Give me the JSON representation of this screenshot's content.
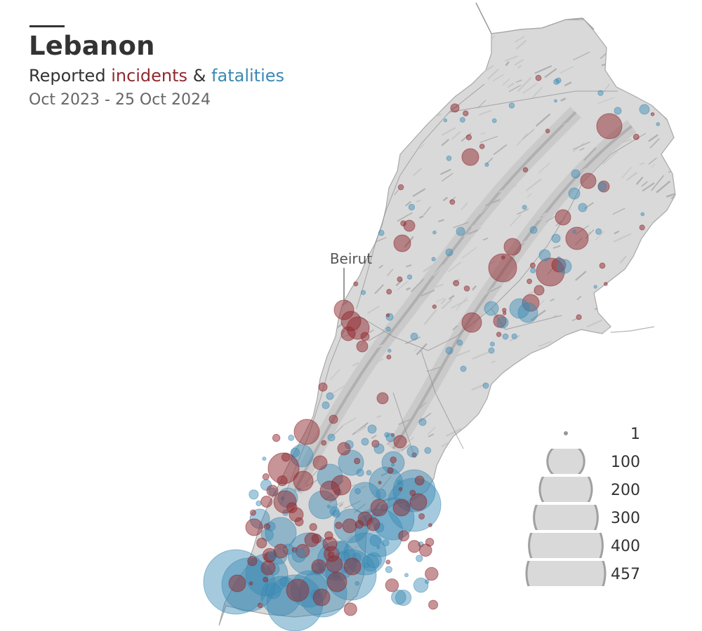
{
  "title": "Lebanon",
  "subtitle": {
    "prefix": "Reported ",
    "incidents": "incidents",
    "connector": " & ",
    "fatalities": "fatalities"
  },
  "date_range": "Oct 2023 - 25 Oct 2024",
  "city_label": "Beirut",
  "colors": {
    "incidents": "#8f2a2f",
    "fatalities": "#3a89b3",
    "country_fill": "#dcdcdc",
    "legend_fill": "#d9d9d9",
    "legend_stroke": "#a0a0a0"
  },
  "legend": {
    "items": [
      {
        "label": "1",
        "value": 1
      },
      {
        "label": "100",
        "value": 100
      },
      {
        "label": "200",
        "value": 200
      },
      {
        "label": "300",
        "value": 300
      },
      {
        "label": "400",
        "value": 400
      },
      {
        "label": "457",
        "value": 457
      }
    ]
  }
}
